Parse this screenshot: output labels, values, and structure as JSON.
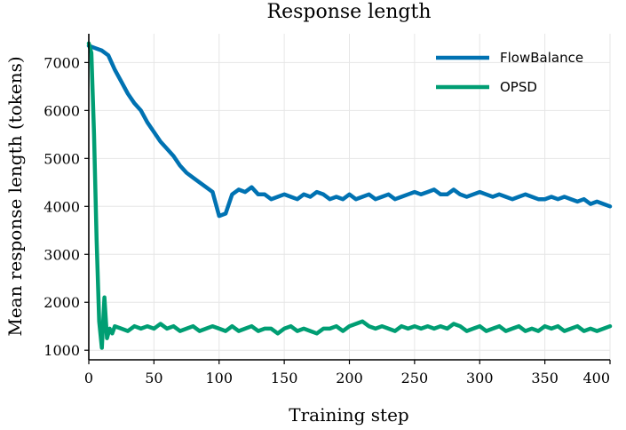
{
  "chart_data": {
    "type": "line",
    "title": "Response length",
    "xlabel": "Training step",
    "ylabel": "Mean response length (tokens)",
    "xlim": [
      0,
      400
    ],
    "ylim": [
      800,
      7600
    ],
    "xticks": [
      0,
      50,
      100,
      150,
      200,
      250,
      300,
      350,
      400
    ],
    "yticks": [
      1000,
      2000,
      3000,
      4000,
      5000,
      6000,
      7000
    ],
    "grid": true,
    "legend_position": "top-right",
    "series": [
      {
        "name": "FlowBalance",
        "color": "#0072B2",
        "x": [
          0,
          5,
          10,
          15,
          20,
          25,
          30,
          35,
          40,
          45,
          50,
          55,
          60,
          65,
          70,
          75,
          80,
          85,
          90,
          95,
          100,
          105,
          110,
          115,
          120,
          125,
          130,
          135,
          140,
          145,
          150,
          155,
          160,
          165,
          170,
          175,
          180,
          185,
          190,
          195,
          200,
          205,
          210,
          215,
          220,
          225,
          230,
          235,
          240,
          245,
          250,
          255,
          260,
          265,
          270,
          275,
          280,
          285,
          290,
          295,
          300,
          305,
          310,
          315,
          320,
          325,
          330,
          335,
          340,
          345,
          350,
          355,
          360,
          365,
          370,
          375,
          380,
          385,
          390,
          395,
          400
        ],
        "values": [
          7350,
          7300,
          7250,
          7150,
          6850,
          6600,
          6350,
          6150,
          6000,
          5750,
          5550,
          5350,
          5200,
          5050,
          4850,
          4700,
          4600,
          4500,
          4400,
          4300,
          3800,
          3850,
          4250,
          4350,
          4300,
          4400,
          4250,
          4250,
          4150,
          4200,
          4250,
          4200,
          4150,
          4250,
          4200,
          4300,
          4250,
          4150,
          4200,
          4150,
          4250,
          4150,
          4200,
          4250,
          4150,
          4200,
          4250,
          4150,
          4200,
          4250,
          4300,
          4250,
          4300,
          4350,
          4250,
          4250,
          4350,
          4250,
          4200,
          4250,
          4300,
          4250,
          4200,
          4250,
          4200,
          4150,
          4200,
          4250,
          4200,
          4150,
          4150,
          4200,
          4150,
          4200,
          4150,
          4100,
          4150,
          4050,
          4100,
          4050,
          4000
        ]
      },
      {
        "name": "OPSD",
        "color": "#009E73",
        "x": [
          0,
          2,
          4,
          6,
          8,
          10,
          12,
          14,
          16,
          18,
          20,
          25,
          30,
          35,
          40,
          45,
          50,
          55,
          60,
          65,
          70,
          75,
          80,
          85,
          90,
          95,
          100,
          105,
          110,
          115,
          120,
          125,
          130,
          135,
          140,
          145,
          150,
          155,
          160,
          165,
          170,
          175,
          180,
          185,
          190,
          195,
          200,
          205,
          210,
          215,
          220,
          225,
          230,
          235,
          240,
          245,
          250,
          255,
          260,
          265,
          270,
          275,
          280,
          285,
          290,
          295,
          300,
          305,
          310,
          315,
          320,
          325,
          330,
          335,
          340,
          345,
          350,
          355,
          360,
          365,
          370,
          375,
          380,
          385,
          390,
          395,
          400
        ],
        "values": [
          7400,
          7200,
          5500,
          3300,
          1600,
          1050,
          2100,
          1250,
          1450,
          1350,
          1500,
          1450,
          1400,
          1500,
          1450,
          1500,
          1450,
          1550,
          1450,
          1500,
          1400,
          1450,
          1500,
          1400,
          1450,
          1500,
          1450,
          1400,
          1500,
          1400,
          1450,
          1500,
          1400,
          1450,
          1450,
          1350,
          1450,
          1500,
          1400,
          1450,
          1400,
          1350,
          1450,
          1450,
          1500,
          1400,
          1500,
          1550,
          1600,
          1500,
          1450,
          1500,
          1450,
          1400,
          1500,
          1450,
          1500,
          1450,
          1500,
          1450,
          1500,
          1450,
          1550,
          1500,
          1400,
          1450,
          1500,
          1400,
          1450,
          1500,
          1400,
          1450,
          1500,
          1400,
          1450,
          1400,
          1500,
          1450,
          1500,
          1400,
          1450,
          1500,
          1400,
          1450,
          1400,
          1450,
          1500
        ]
      }
    ]
  }
}
